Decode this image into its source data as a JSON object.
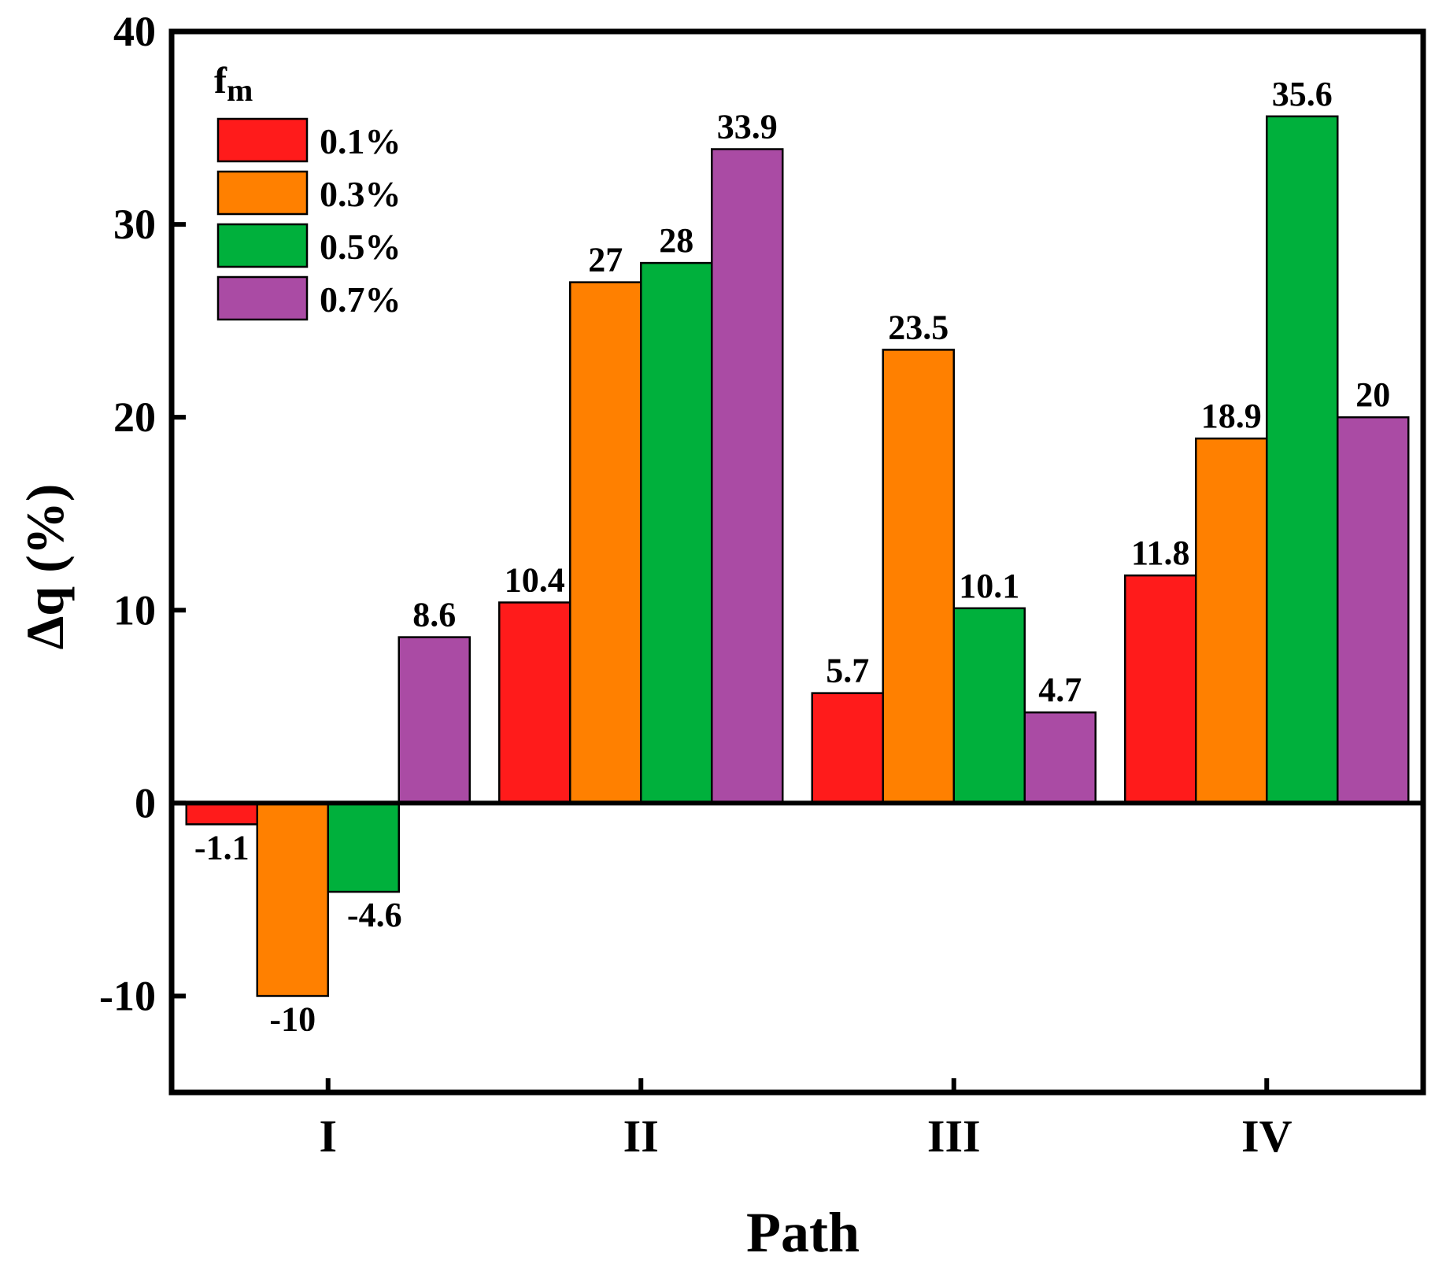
{
  "chart_data": {
    "type": "bar",
    "categories": [
      "I",
      "II",
      "III",
      "IV"
    ],
    "series": [
      {
        "name": "0.1%",
        "color": "#ff1b1b",
        "values": [
          -1.1,
          10.4,
          5.7,
          11.8
        ]
      },
      {
        "name": "0.3%",
        "color": "#ff8000",
        "values": [
          -10,
          27,
          23.5,
          18.9
        ]
      },
      {
        "name": "0.5%",
        "color": "#00b03c",
        "values": [
          -4.6,
          28,
          10.1,
          35.6
        ]
      },
      {
        "name": "0.7%",
        "color": "#aa4ba4",
        "values": [
          8.6,
          33.9,
          4.7,
          20
        ]
      }
    ],
    "data_labels": [
      [
        "-1.1",
        "10.4",
        "5.7",
        "11.8"
      ],
      [
        "-10",
        "27",
        "23.5",
        "18.9"
      ],
      [
        "-4.6",
        "28",
        "10.1",
        "35.6"
      ],
      [
        "8.6",
        "33.9",
        "4.7",
        "20"
      ]
    ],
    "xlabel": "Path",
    "ylabel": "Δq (%)",
    "ylim": [
      -15,
      40
    ],
    "yticks": [
      -10,
      0,
      10,
      20,
      30,
      40
    ],
    "ytick_labels": [
      "-10",
      "0",
      "10",
      "20",
      "30",
      "40"
    ],
    "legend": {
      "title_main": "f",
      "title_sub": "m",
      "position": "top-left"
    },
    "grid": false
  }
}
